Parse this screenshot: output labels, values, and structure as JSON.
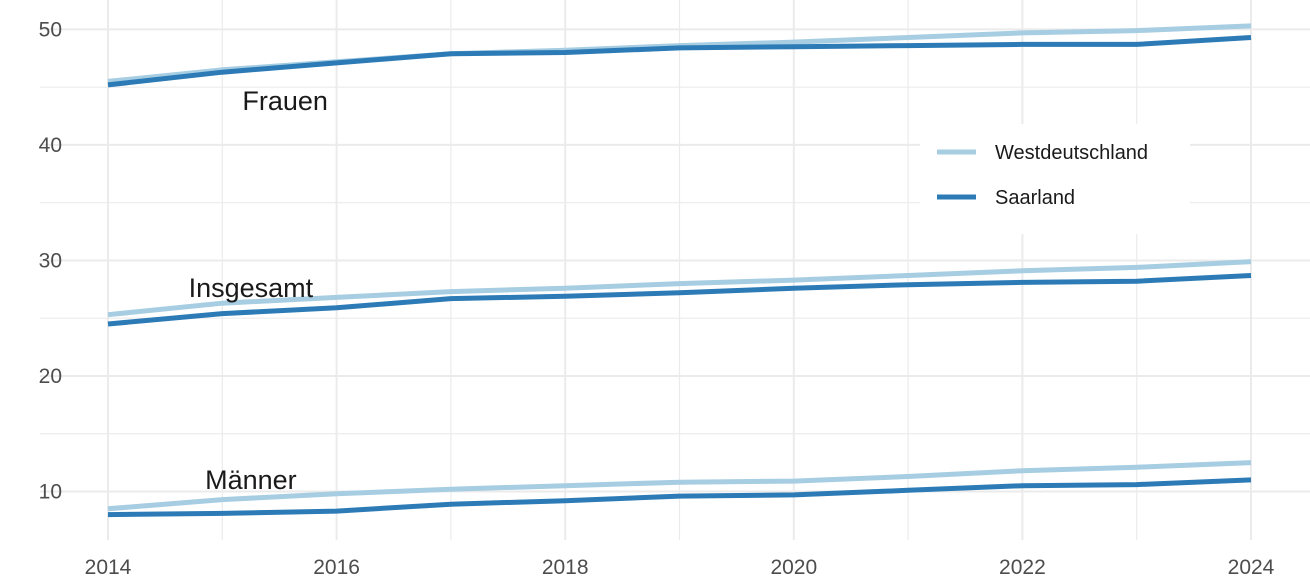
{
  "chart_data": {
    "type": "line",
    "title": "",
    "xlabel": "",
    "ylabel": "",
    "xlim": [
      2014,
      2024
    ],
    "ylim": [
      5.8,
      52.2
    ],
    "x": [
      2014,
      2015,
      2016,
      2017,
      2018,
      2019,
      2020,
      2021,
      2022,
      2023,
      2024
    ],
    "x_ticks": [
      2014,
      2016,
      2018,
      2020,
      2022,
      2024
    ],
    "y_ticks": [
      10,
      20,
      30,
      40,
      50
    ],
    "grid": true,
    "legend_position": "right",
    "legend": [
      {
        "series": "Westdeutschland",
        "label": "Westdeutschland"
      },
      {
        "series": "Saarland",
        "label": "Saarland"
      }
    ],
    "colors": {
      "Westdeutschland": "#a6cde2",
      "Saarland": "#2c7bb6",
      "grid": "#ebebeb",
      "text": "#4d4d4d"
    },
    "groups": [
      {
        "label": "Frauen",
        "series": [
          {
            "name": "Westdeutschland",
            "values": [
              45.5,
              46.5,
              47.2,
              47.9,
              48.2,
              48.6,
              48.9,
              49.3,
              49.7,
              49.9,
              50.3
            ]
          },
          {
            "name": "Saarland",
            "values": [
              45.2,
              46.3,
              47.1,
              47.9,
              48.0,
              48.4,
              48.5,
              48.6,
              48.7,
              48.7,
              49.3
            ]
          }
        ]
      },
      {
        "label": "Insgesamt",
        "series": [
          {
            "name": "Westdeutschland",
            "values": [
              25.3,
              26.3,
              26.8,
              27.3,
              27.6,
              28.0,
              28.3,
              28.7,
              29.1,
              29.4,
              29.9
            ]
          },
          {
            "name": "Saarland",
            "values": [
              24.5,
              25.4,
              25.9,
              26.7,
              26.9,
              27.2,
              27.6,
              27.9,
              28.1,
              28.2,
              28.7
            ]
          }
        ]
      },
      {
        "label": "Männer",
        "series": [
          {
            "name": "Westdeutschland",
            "values": [
              8.5,
              9.3,
              9.8,
              10.2,
              10.5,
              10.8,
              10.9,
              11.3,
              11.8,
              12.1,
              12.5
            ]
          },
          {
            "name": "Saarland",
            "values": [
              8.0,
              8.1,
              8.3,
              8.9,
              9.2,
              9.6,
              9.7,
              10.1,
              10.5,
              10.6,
              11.0
            ]
          }
        ]
      }
    ]
  }
}
